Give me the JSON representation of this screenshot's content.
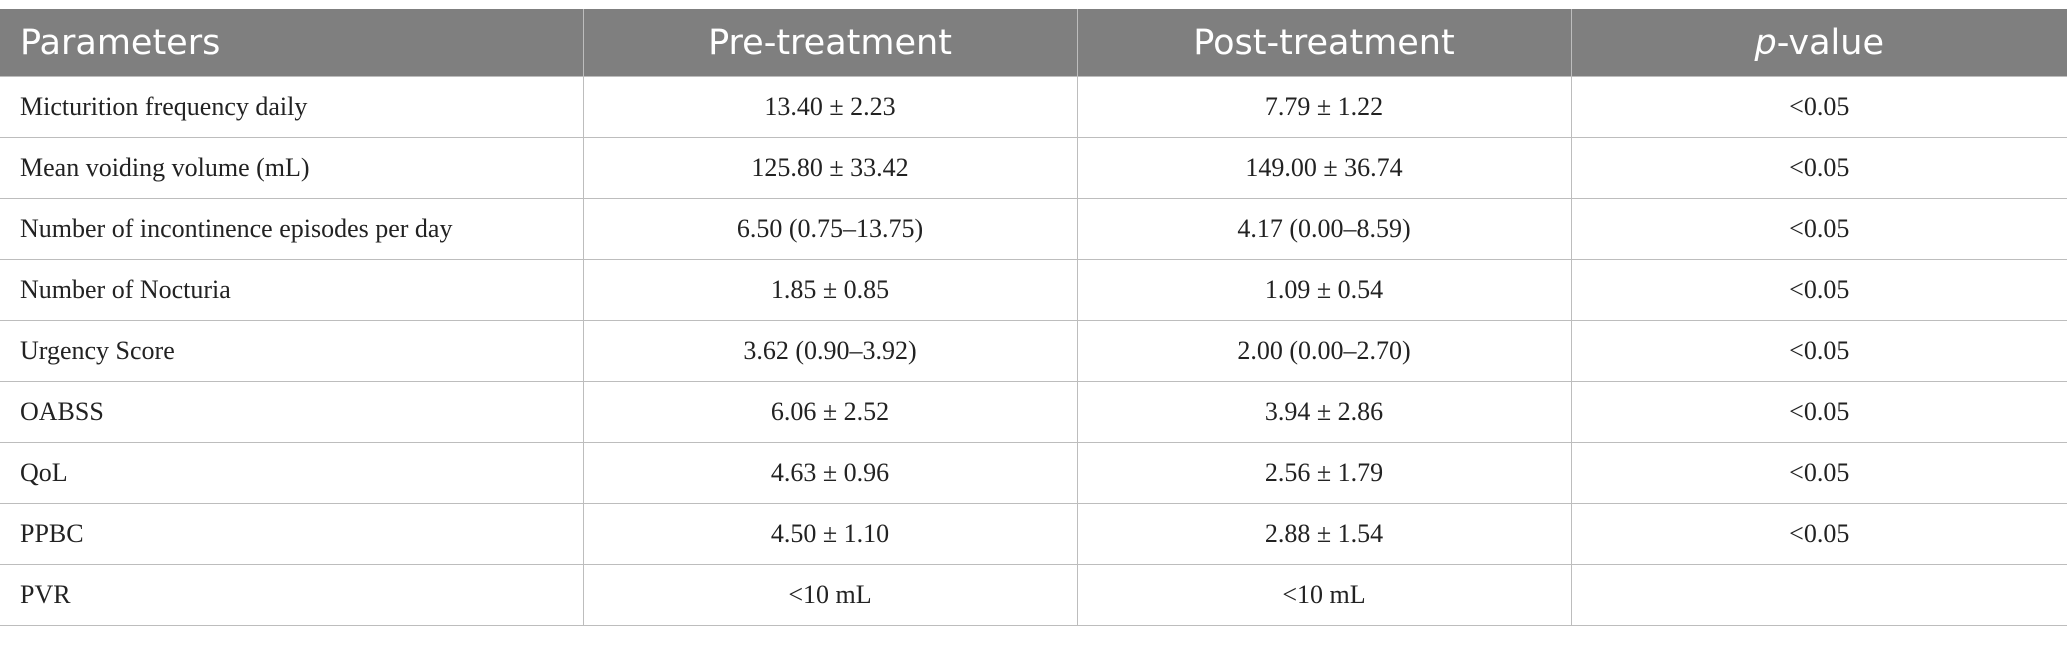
{
  "table": {
    "header": {
      "parameters": "Parameters",
      "pre": "Pre-treatment",
      "post": "Post-treatment",
      "p_italic": "p",
      "p_rest": "-value"
    },
    "rows": [
      {
        "parameter": "Micturition frequency daily",
        "pre": "13.40 ± 2.23",
        "post": "7.79 ± 1.22",
        "p": "<0.05"
      },
      {
        "parameter": "Mean voiding volume (mL)",
        "pre": "125.80 ± 33.42",
        "post": "149.00 ± 36.74",
        "p": "<0.05"
      },
      {
        "parameter": "Number of incontinence episodes per day",
        "pre": "6.50 (0.75–13.75)",
        "post": "4.17 (0.00–8.59)",
        "p": "<0.05"
      },
      {
        "parameter": "Number of Nocturia",
        "pre": "1.85 ± 0.85",
        "post": "1.09 ± 0.54",
        "p": "<0.05"
      },
      {
        "parameter": "Urgency Score",
        "pre": "3.62 (0.90–3.92)",
        "post": "2.00 (0.00–2.70)",
        "p": "<0.05"
      },
      {
        "parameter": "OABSS",
        "pre": "6.06 ± 2.52",
        "post": "3.94 ± 2.86",
        "p": "<0.05"
      },
      {
        "parameter": "QoL",
        "pre": "4.63 ± 0.96",
        "post": "2.56 ± 1.79",
        "p": "<0.05"
      },
      {
        "parameter": "PPBC",
        "pre": "4.50 ± 1.10",
        "post": "2.88 ± 1.54",
        "p": "<0.05"
      },
      {
        "parameter": "PVR",
        "pre": "<10 mL",
        "post": "<10 mL",
        "p": ""
      }
    ]
  },
  "colors": {
    "header_bg": "#7f7f7f",
    "header_text": "#ffffff",
    "grid": "#bdbdbd"
  }
}
